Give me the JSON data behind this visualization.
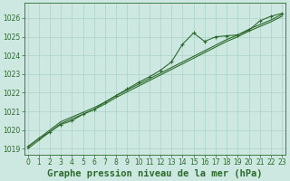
{
  "title": "Graphe pression niveau de la mer (hPa)",
  "hours": [
    0,
    1,
    2,
    3,
    4,
    5,
    6,
    7,
    8,
    9,
    10,
    11,
    12,
    13,
    14,
    15,
    16,
    17,
    18,
    19,
    20,
    21,
    22,
    23
  ],
  "line_straight1": [
    1019.1,
    1019.55,
    1020.0,
    1020.45,
    1020.7,
    1020.95,
    1021.2,
    1021.5,
    1021.85,
    1022.15,
    1022.45,
    1022.75,
    1023.05,
    1023.35,
    1023.65,
    1023.95,
    1024.25,
    1024.55,
    1024.85,
    1025.1,
    1025.4,
    1025.65,
    1025.9,
    1026.2
  ],
  "line_straight2": [
    1019.0,
    1019.45,
    1019.9,
    1020.35,
    1020.6,
    1020.85,
    1021.1,
    1021.4,
    1021.75,
    1022.05,
    1022.35,
    1022.65,
    1022.95,
    1023.25,
    1023.55,
    1023.85,
    1024.15,
    1024.45,
    1024.75,
    1025.0,
    1025.3,
    1025.55,
    1025.8,
    1026.1
  ],
  "line_markers": [
    1019.1,
    1019.55,
    1019.9,
    1020.3,
    1020.5,
    1020.85,
    1021.1,
    1021.5,
    1021.85,
    1022.2,
    1022.55,
    1022.85,
    1023.2,
    1023.65,
    1024.6,
    1025.2,
    1024.75,
    1025.0,
    1025.05,
    1025.1,
    1025.35,
    1025.85,
    1026.1,
    1026.25
  ],
  "bg_color": "#cce8e0",
  "grid_color": "#aad4c8",
  "line_color": "#2d6b2d",
  "text_color": "#2d6b2d",
  "border_color": "#2d6b2d",
  "ylim_min": 1018.7,
  "ylim_max": 1026.8,
  "yticks": [
    1019,
    1020,
    1021,
    1022,
    1023,
    1024,
    1025,
    1026
  ],
  "title_fontsize": 7.5,
  "tick_fontsize": 5.5
}
